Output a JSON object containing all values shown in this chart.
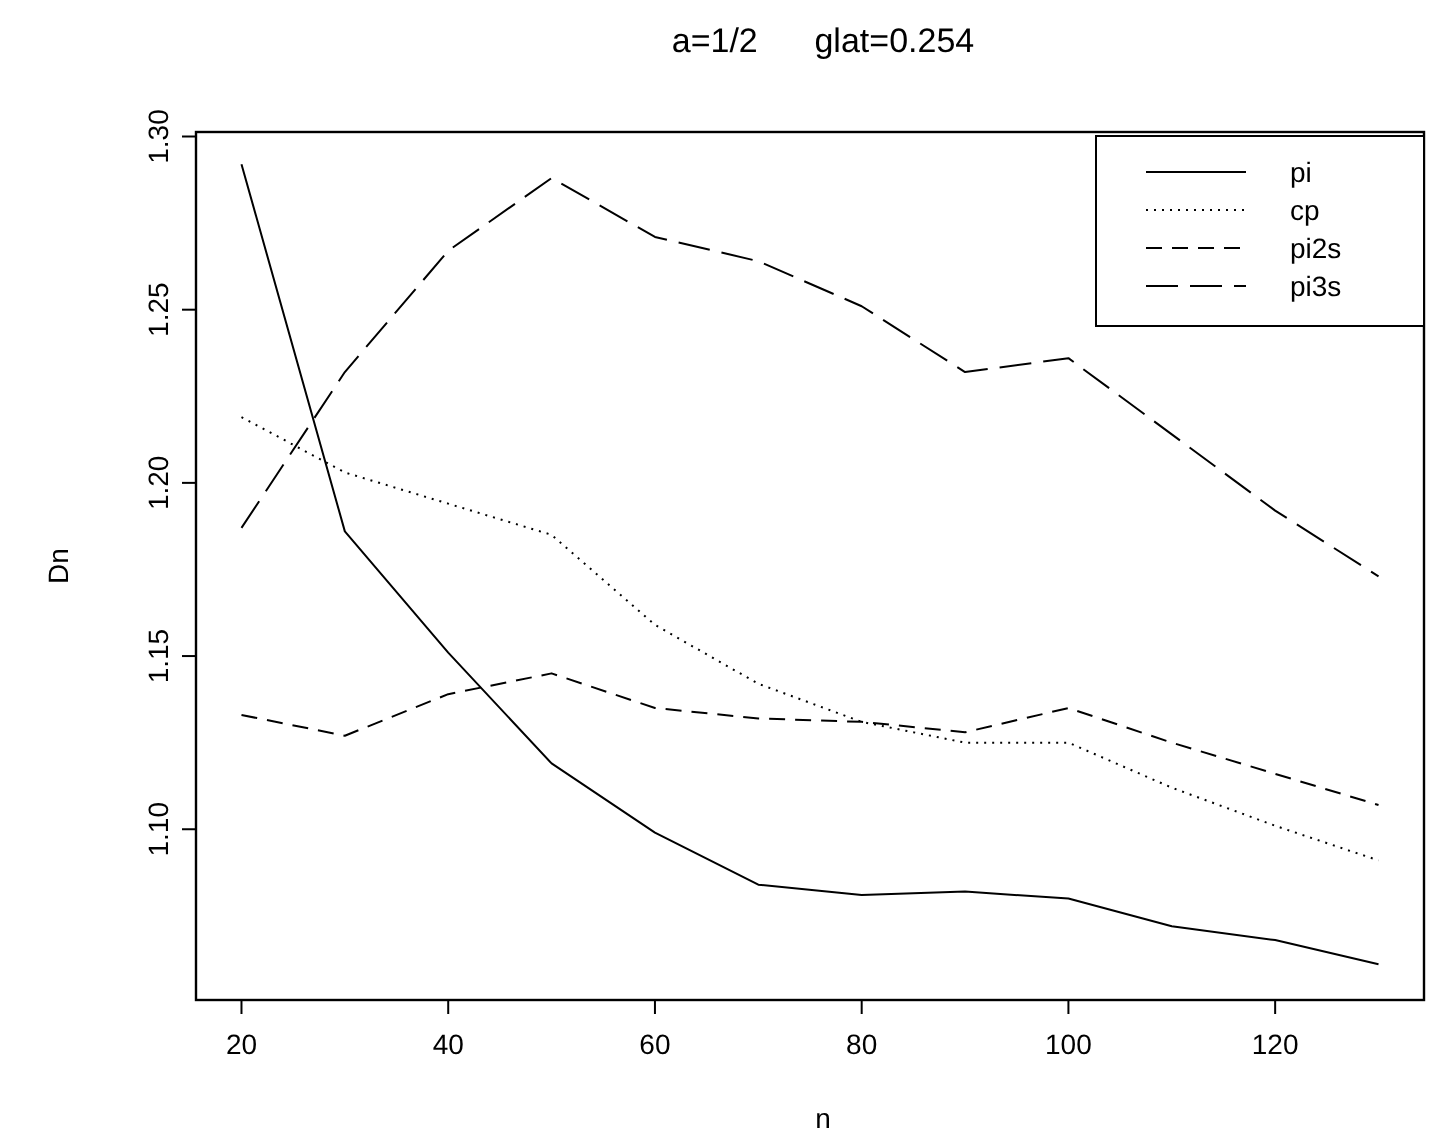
{
  "chart_data": {
    "type": "line",
    "title": "a=1/2      glat=0.254",
    "xlabel": "n",
    "ylabel": "Dn",
    "x": [
      20,
      30,
      40,
      50,
      60,
      70,
      80,
      90,
      100,
      110,
      120,
      130
    ],
    "xlim": [
      15.6,
      134.4
    ],
    "xticks": [
      20,
      40,
      60,
      80,
      100,
      120
    ],
    "ylim": [
      1.0507,
      1.3013
    ],
    "yticks": [
      {
        "value": 1.1,
        "label": "1.10"
      },
      {
        "value": 1.15,
        "label": "1.15"
      },
      {
        "value": 1.2,
        "label": "1.20"
      },
      {
        "value": 1.25,
        "label": "1.25"
      },
      {
        "value": 1.3,
        "label": "1.30"
      }
    ],
    "grid": false,
    "legend": "top right",
    "series": [
      {
        "name": "pi",
        "color": "#000000",
        "line_style": "solid",
        "values": [
          1.292,
          1.186,
          1.151,
          1.119,
          1.099,
          1.084,
          1.081,
          1.082,
          1.08,
          1.072,
          1.068,
          1.061
        ]
      },
      {
        "name": "cp",
        "color": "#000000",
        "line_style": "dotted",
        "values": [
          1.219,
          1.203,
          1.194,
          1.185,
          1.159,
          1.142,
          1.131,
          1.125,
          1.125,
          1.112,
          1.101,
          1.091
        ]
      },
      {
        "name": "pi2s",
        "color": "#000000",
        "line_style": "dashed",
        "values": [
          1.133,
          1.127,
          1.139,
          1.145,
          1.135,
          1.132,
          1.131,
          1.128,
          1.135,
          1.125,
          1.116,
          1.107
        ]
      },
      {
        "name": "pi3s",
        "color": "#000000",
        "line_style": "longdash",
        "values": [
          1.187,
          1.232,
          1.267,
          1.288,
          1.271,
          1.264,
          1.251,
          1.232,
          1.236,
          1.214,
          1.192,
          1.173
        ]
      }
    ]
  }
}
